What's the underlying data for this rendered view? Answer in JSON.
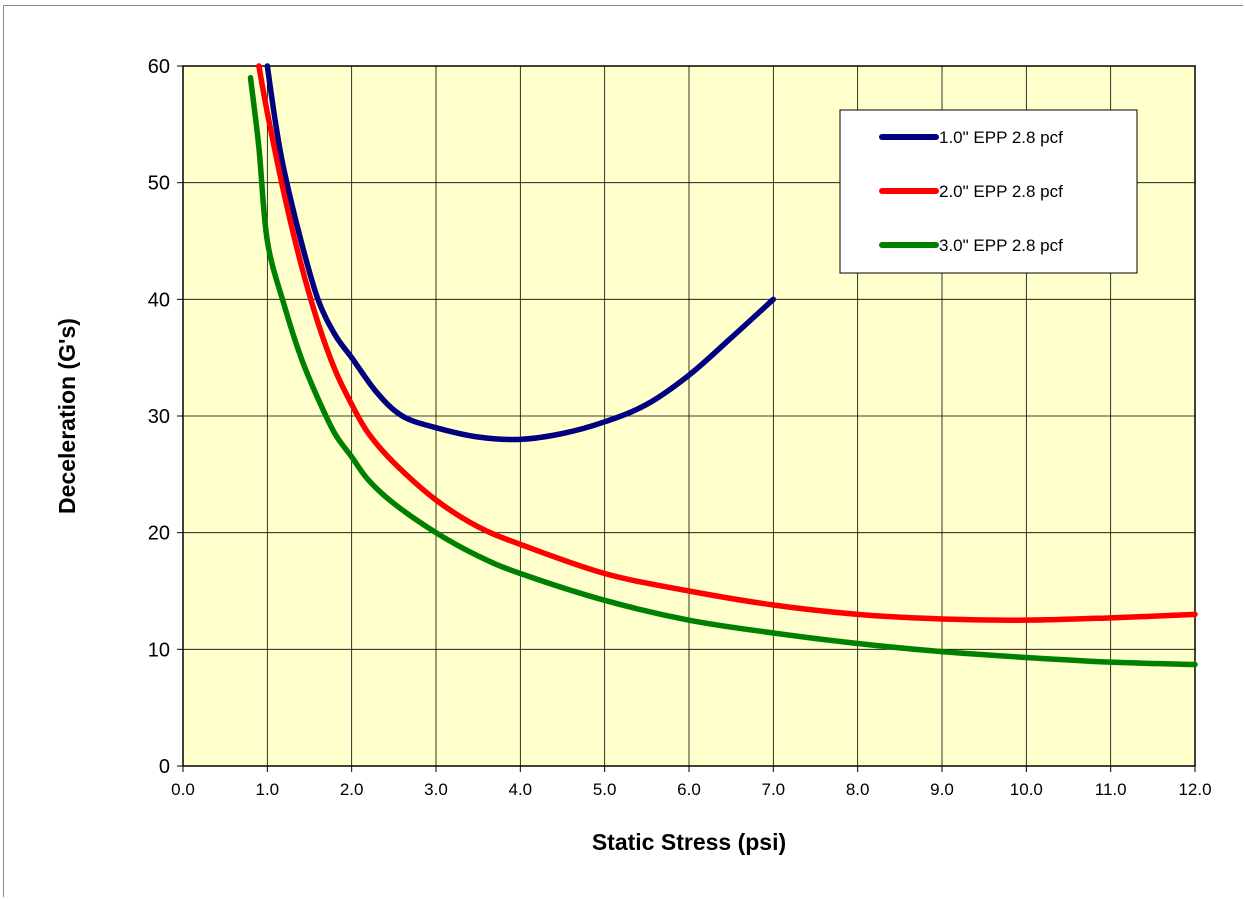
{
  "chart_data": {
    "type": "line",
    "title": "",
    "xlabel": "Static Stress (psi)",
    "ylabel": "Deceleration (G's)",
    "xlim": [
      0,
      12
    ],
    "ylim": [
      0,
      60
    ],
    "x_ticks": [
      "0.0",
      "1.0",
      "2.0",
      "3.0",
      "4.0",
      "5.0",
      "6.0",
      "7.0",
      "8.0",
      "9.0",
      "10.0",
      "11.0",
      "12.0"
    ],
    "y_ticks": [
      "0",
      "10",
      "20",
      "30",
      "40",
      "50",
      "60"
    ],
    "grid": true,
    "plot_background": "#FFFFCC",
    "legend_position": "top-right",
    "series": [
      {
        "name": "1.0\" EPP 2.8 pcf",
        "color": "#000080",
        "x": [
          1.0,
          1.1,
          1.2,
          1.4,
          1.6,
          1.8,
          2.0,
          2.3,
          2.6,
          3.0,
          3.5,
          4.0,
          4.5,
          5.0,
          5.5,
          6.0,
          6.5,
          7.0
        ],
        "y": [
          60,
          55,
          51,
          45,
          40,
          37,
          35,
          32,
          30,
          29,
          28.2,
          28,
          28.5,
          29.5,
          31,
          33.5,
          36.7,
          40
        ]
      },
      {
        "name": "2.0\" EPP 2.8 pcf",
        "color": "#FF0000",
        "x": [
          0.9,
          1.0,
          1.2,
          1.4,
          1.6,
          1.8,
          2.0,
          2.2,
          2.5,
          3.0,
          3.5,
          4.0,
          5.0,
          6.0,
          7.0,
          8.0,
          9.0,
          10.0,
          11.0,
          12.0
        ],
        "y": [
          60,
          56,
          49,
          43,
          38,
          34,
          31,
          28.5,
          26,
          22.8,
          20.5,
          19,
          16.5,
          15,
          13.8,
          13,
          12.6,
          12.5,
          12.7,
          13
        ]
      },
      {
        "name": "3.0\" EPP 2.8 pcf",
        "color": "#008000",
        "x": [
          0.8,
          0.9,
          1.0,
          1.2,
          1.4,
          1.6,
          1.8,
          2.0,
          2.2,
          2.5,
          3.0,
          3.5,
          4.0,
          5.0,
          6.0,
          7.0,
          8.0,
          9.0,
          10.0,
          11.0,
          12.0
        ],
        "y": [
          59,
          53,
          45,
          39.5,
          35,
          31.5,
          28.5,
          26.5,
          24.5,
          22.5,
          20,
          18,
          16.5,
          14.2,
          12.5,
          11.4,
          10.5,
          9.8,
          9.3,
          8.9,
          8.7
        ]
      }
    ]
  }
}
